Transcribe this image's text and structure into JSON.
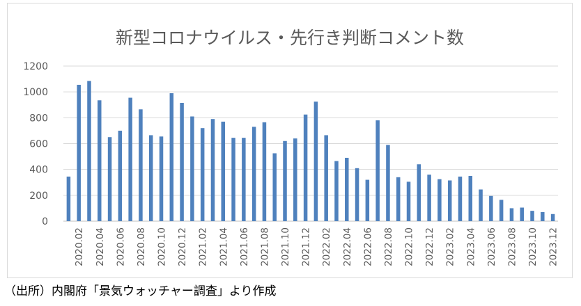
{
  "source_note": "（出所）内閣府「景気ウォッチャー調査」より作成",
  "chart_data": {
    "type": "bar",
    "title": "新型コロナウイルス・先行き判断コメント数",
    "xlabel": "",
    "ylabel": "",
    "ylim": [
      0,
      1200
    ],
    "yticks": [
      "0",
      "200",
      "400",
      "600",
      "800",
      "1000",
      "1200"
    ],
    "grid": true,
    "legend": "none",
    "bar_color": "#4f81bd",
    "categories": [
      "2020.01",
      "2020.02",
      "2020.03",
      "2020.04",
      "2020.05",
      "2020.06",
      "2020.07",
      "2020.08",
      "2020.09",
      "2020.10",
      "2020.11",
      "2020.12",
      "2021.01",
      "2021.02",
      "2021.03",
      "2021.04",
      "2021.05",
      "2021.06",
      "2021.07",
      "2021.08",
      "2021.09",
      "2021.10",
      "2021.11",
      "2021.12",
      "2022.01",
      "2022.02",
      "2022.03",
      "2022.04",
      "2022.05",
      "2022.06",
      "2022.07",
      "2022.08",
      "2022.09",
      "2022.10",
      "2022.11",
      "2022.12",
      "2023.01",
      "2023.02",
      "2023.03",
      "2023.04",
      "2023.05",
      "2023.06",
      "2023.07",
      "2023.08",
      "2023.09",
      "2023.10",
      "2023.11",
      "2023.12"
    ],
    "x_tick_labels": [
      "",
      "2020.02",
      "",
      "2020.04",
      "",
      "2020.06",
      "",
      "2020.08",
      "",
      "2020.10",
      "",
      "2020.12",
      "",
      "2021.02",
      "",
      "2021.04",
      "",
      "2021.06",
      "",
      "2021.08",
      "",
      "2021.10",
      "",
      "2021.12",
      "",
      "2022.02",
      "",
      "2022.04",
      "",
      "2022.06",
      "",
      "2022.08",
      "",
      "2022.10",
      "",
      "2022.12",
      "",
      "2023.02",
      "",
      "2023.04",
      "",
      "2023.06",
      "",
      "2023.08",
      "",
      "2023.10",
      "",
      "2023.12"
    ],
    "values": [
      345,
      1055,
      1085,
      935,
      650,
      700,
      955,
      865,
      665,
      655,
      990,
      915,
      810,
      720,
      790,
      770,
      645,
      645,
      730,
      765,
      525,
      620,
      640,
      825,
      925,
      665,
      465,
      490,
      410,
      320,
      780,
      590,
      340,
      305,
      440,
      360,
      325,
      315,
      345,
      350,
      245,
      195,
      165,
      100,
      105,
      80,
      70,
      55
    ]
  }
}
